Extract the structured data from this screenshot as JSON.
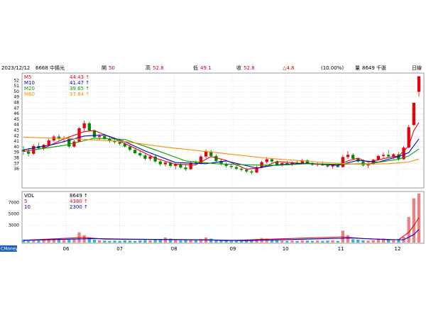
{
  "chart_data": {
    "type": "candlestick",
    "header": {
      "date": "2023/12/12",
      "stock": "6668 中揚光",
      "open_label": "開",
      "open": 50,
      "high_label": "高",
      "high": 52.8,
      "low_label": "低",
      "low": 49.1,
      "close_label": "收",
      "close": 52.8,
      "change": "△4.8",
      "change_pct": "(10.00%)",
      "volume_label": "量",
      "volume": "8649 千張",
      "period": "日線"
    },
    "xlim": [
      0,
      78
    ],
    "xticks": [
      {
        "value": 8.4,
        "label": "06"
      },
      {
        "value": 19,
        "label": "07"
      },
      {
        "value": 29.7,
        "label": "08"
      },
      {
        "value": 41.3,
        "label": "09"
      },
      {
        "value": 51.7,
        "label": "10"
      },
      {
        "value": 62.6,
        "label": "11"
      },
      {
        "value": 73.8,
        "label": "12"
      }
    ],
    "ylim": [
      33,
      53
    ],
    "yticks": [
      36,
      37,
      38,
      39,
      40,
      41,
      42,
      43,
      44,
      45,
      46,
      47,
      48,
      49,
      50,
      51,
      52
    ],
    "grid": true,
    "up_color": "#e8000b",
    "down_color": "#008a00",
    "candles": [
      [
        39.5,
        40.2,
        38.6,
        39.2
      ],
      [
        39.2,
        39.8,
        38.3,
        38.8
      ],
      [
        38.8,
        40.5,
        38.6,
        40.2
      ],
      [
        40.2,
        40.8,
        39.5,
        39.8
      ],
      [
        39.8,
        40.6,
        39.4,
        40.4
      ],
      [
        40.4,
        41.5,
        40.1,
        41.2
      ],
      [
        41.2,
        42.2,
        40.9,
        41.9
      ],
      [
        41.9,
        42.3,
        41.2,
        41.5
      ],
      [
        41.5,
        42.0,
        40.8,
        41.6
      ],
      [
        41.6,
        41.9,
        39.8,
        40.1
      ],
      [
        40.1,
        41.3,
        39.9,
        41.0
      ],
      [
        41.0,
        43.6,
        40.9,
        43.4
      ],
      [
        43.4,
        44.8,
        42.9,
        44.3
      ],
      [
        44.3,
        44.6,
        42.8,
        43.0
      ],
      [
        43.0,
        43.2,
        41.6,
        41.8
      ],
      [
        41.8,
        42.3,
        41.2,
        42.0
      ],
      [
        42.0,
        42.4,
        41.3,
        41.5
      ],
      [
        41.5,
        41.9,
        40.8,
        41.1
      ],
      [
        41.1,
        41.6,
        40.6,
        40.9
      ],
      [
        40.9,
        41.3,
        40.3,
        40.6
      ],
      [
        40.6,
        40.9,
        39.9,
        40.1
      ],
      [
        40.1,
        40.4,
        39.2,
        39.5
      ],
      [
        39.5,
        39.9,
        38.7,
        38.9
      ],
      [
        38.9,
        39.4,
        38.2,
        38.5
      ],
      [
        38.5,
        38.8,
        37.6,
        37.9
      ],
      [
        37.9,
        38.6,
        37.5,
        38.3
      ],
      [
        38.3,
        38.5,
        37.2,
        37.4
      ],
      [
        37.4,
        37.8,
        36.6,
        36.9
      ],
      [
        36.9,
        37.5,
        36.5,
        37.2
      ],
      [
        37.2,
        37.4,
        36.3,
        36.6
      ],
      [
        36.6,
        37.1,
        36.0,
        36.9
      ],
      [
        36.9,
        37.2,
        36.1,
        36.3
      ],
      [
        36.3,
        36.8,
        35.7,
        36.0
      ],
      [
        36.0,
        37.4,
        35.9,
        37.2
      ],
      [
        37.2,
        37.6,
        36.8,
        37.0
      ],
      [
        37.0,
        38.6,
        36.9,
        38.3
      ],
      [
        38.3,
        39.6,
        38.0,
        39.2
      ],
      [
        39.2,
        39.5,
        38.1,
        38.4
      ],
      [
        38.4,
        38.7,
        37.2,
        37.5
      ],
      [
        37.5,
        37.9,
        36.7,
        36.9
      ],
      [
        36.9,
        37.3,
        36.3,
        36.6
      ],
      [
        36.6,
        37.0,
        36.1,
        36.4
      ],
      [
        36.4,
        36.8,
        35.8,
        36.1
      ],
      [
        36.1,
        36.5,
        35.6,
        35.9
      ],
      [
        35.9,
        36.3,
        35.3,
        35.6
      ],
      [
        35.6,
        35.9,
        35.1,
        35.4
      ],
      [
        35.4,
        36.6,
        35.3,
        36.4
      ],
      [
        36.4,
        37.5,
        36.2,
        37.3
      ],
      [
        37.3,
        38.2,
        37.0,
        37.8
      ],
      [
        37.8,
        38.0,
        37.1,
        37.4
      ],
      [
        37.4,
        37.6,
        36.6,
        36.8
      ],
      [
        36.8,
        37.3,
        36.5,
        37.1
      ],
      [
        37.1,
        37.5,
        36.7,
        36.9
      ],
      [
        36.9,
        37.4,
        36.6,
        37.2
      ],
      [
        37.2,
        37.6,
        36.8,
        37.0
      ],
      [
        37.0,
        37.9,
        36.9,
        37.6
      ],
      [
        37.6,
        37.8,
        36.9,
        37.1
      ],
      [
        37.1,
        37.3,
        36.6,
        36.8
      ],
      [
        36.8,
        37.2,
        36.5,
        37.0
      ],
      [
        37.0,
        37.4,
        36.6,
        36.7
      ],
      [
        36.7,
        37.0,
        36.3,
        36.5
      ],
      [
        36.5,
        36.9,
        36.1,
        36.7
      ],
      [
        36.7,
        37.1,
        36.3,
        36.4
      ],
      [
        36.4,
        38.6,
        36.3,
        38.2
      ],
      [
        38.2,
        39.3,
        37.9,
        38.6
      ],
      [
        38.6,
        38.9,
        37.7,
        37.9
      ],
      [
        37.9,
        38.1,
        37.2,
        37.4
      ],
      [
        37.4,
        37.6,
        36.5,
        36.7
      ],
      [
        36.7,
        37.0,
        36.2,
        36.9
      ],
      [
        36.9,
        37.9,
        36.8,
        37.7
      ],
      [
        37.7,
        38.6,
        37.5,
        38.4
      ],
      [
        38.4,
        39.0,
        38.0,
        38.6
      ],
      [
        38.6,
        39.5,
        38.2,
        38.3
      ],
      [
        38.3,
        38.9,
        37.8,
        38.7
      ],
      [
        38.7,
        39.1,
        37.5,
        37.8
      ],
      [
        37.8,
        40.2,
        37.7,
        39.9
      ],
      [
        39.9,
        44.0,
        39.8,
        43.6
      ],
      [
        44.0,
        48.0,
        43.8,
        48.0
      ],
      [
        50,
        52.8,
        49.1,
        52.8
      ]
    ],
    "ma_lines": [
      {
        "name": "M5",
        "last_label": "44.43 ↑",
        "color": "#e8000b",
        "x": [
          0,
          4,
          8,
          12,
          14,
          18,
          22,
          26,
          30,
          34,
          37,
          40,
          44,
          47,
          50,
          54,
          58,
          62,
          64,
          66,
          68,
          72,
          74,
          76,
          77,
          78
        ],
        "values": [
          39.2,
          39.8,
          41.5,
          42.8,
          43.0,
          41.5,
          39.8,
          38.0,
          36.9,
          36.8,
          38.3,
          37.6,
          36.0,
          36.3,
          37.4,
          37.1,
          36.9,
          36.7,
          37.5,
          38.0,
          37.3,
          38.1,
          38.4,
          40.2,
          43.0,
          44.43
        ]
      },
      {
        "name": "M10",
        "last_label": "41.47 ↑",
        "color": "#0000cc",
        "x": [
          0,
          6,
          12,
          16,
          20,
          24,
          30,
          36,
          40,
          46,
          50,
          56,
          62,
          66,
          70,
          74,
          76,
          78
        ],
        "values": [
          39.5,
          40.5,
          42.0,
          42.2,
          41.0,
          39.3,
          37.2,
          37.0,
          37.5,
          36.2,
          36.8,
          37.1,
          36.7,
          37.6,
          37.3,
          38.3,
          39.0,
          41.47
        ]
      },
      {
        "name": "M20",
        "last_label": "39.65 ↑",
        "color": "#00a000",
        "x": [
          2,
          8,
          14,
          20,
          26,
          32,
          38,
          44,
          50,
          56,
          62,
          68,
          74,
          76,
          78
        ],
        "values": [
          39.5,
          40.3,
          41.6,
          41.4,
          39.5,
          37.5,
          37.0,
          36.8,
          36.7,
          37.0,
          36.9,
          37.0,
          37.8,
          38.4,
          39.65
        ]
      },
      {
        "name": "M60",
        "last_label": "37.84 ↑",
        "color": "#ff8c00",
        "x": [
          0,
          10,
          20,
          28,
          38,
          48,
          58,
          66,
          72,
          76,
          78
        ],
        "values": [
          41.8,
          41.5,
          41.0,
          40.0,
          39.0,
          38.0,
          37.3,
          36.9,
          37.0,
          37.3,
          37.84
        ]
      }
    ],
    "volume": {
      "ylim": [
        0,
        9000
      ],
      "yticks": [
        3000,
        5000,
        7000
      ],
      "values": [
        500,
        300,
        400,
        350,
        450,
        600,
        700,
        500,
        450,
        500,
        600,
        1800,
        1300,
        900,
        500,
        400,
        350,
        300,
        350,
        300,
        400,
        350,
        300,
        400,
        450,
        400,
        500,
        600,
        900,
        700,
        500,
        400,
        450,
        500,
        400,
        600,
        900,
        700,
        500,
        400,
        350,
        300,
        350,
        400,
        450,
        500,
        600,
        800,
        700,
        500,
        400,
        350,
        300,
        350,
        300,
        400,
        350,
        300,
        350,
        300,
        350,
        400,
        300,
        2100,
        1300,
        600,
        500,
        400,
        350,
        450,
        600,
        700,
        500,
        400,
        600,
        1000,
        4500,
        7800,
        8649
      ],
      "lines": [
        {
          "name": "VOL",
          "last_label": "8649 ↑",
          "color": "#000000"
        },
        {
          "name": "5",
          "last_label": "4380 ↑",
          "color": "#e8000b",
          "x": [
            0,
            12,
            16,
            36,
            40,
            63,
            67,
            74,
            76,
            77,
            78
          ],
          "values": [
            400,
            900,
            600,
            500,
            350,
            1000,
            700,
            500,
            1800,
            3000,
            4380
          ]
        },
        {
          "name": "10",
          "last_label": "2300 ↑",
          "color": "#0000cc",
          "x": [
            0,
            14,
            20,
            38,
            44,
            65,
            72,
            75,
            77,
            78
          ],
          "values": [
            400,
            700,
            600,
            450,
            350,
            800,
            500,
            500,
            1400,
            2300
          ]
        }
      ]
    },
    "brand": "CMoney"
  }
}
